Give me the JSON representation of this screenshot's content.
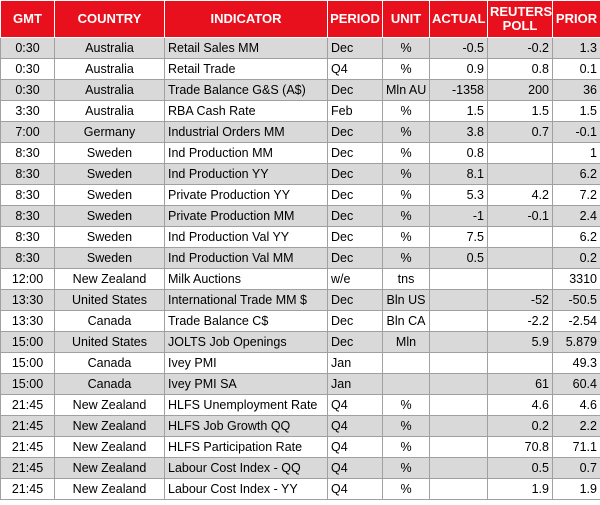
{
  "header": {
    "gmt": "GMT",
    "country": "COUNTRY",
    "indicator": "INDICATOR",
    "period": "PERIOD",
    "unit": "UNIT",
    "actual": "ACTUAL",
    "reuters_line1": "REUTERS",
    "reuters_line2": "POLL",
    "prior": "PRIOR"
  },
  "rows": [
    {
      "gmt": "0:30",
      "country": "Australia",
      "indicator": "Retail Sales MM",
      "period": "Dec",
      "unit": "%",
      "actual": "-0.5",
      "poll": "-0.2",
      "prior": "1.3"
    },
    {
      "gmt": "0:30",
      "country": "Australia",
      "indicator": "Retail Trade",
      "period": "Q4",
      "unit": "%",
      "actual": "0.9",
      "poll": "0.8",
      "prior": "0.1"
    },
    {
      "gmt": "0:30",
      "country": "Australia",
      "indicator": "Trade Balance G&S (A$)",
      "period": "Dec",
      "unit": "Mln AU",
      "actual": "-1358",
      "poll": "200",
      "prior": "36"
    },
    {
      "gmt": "3:30",
      "country": "Australia",
      "indicator": "RBA Cash Rate",
      "period": "Feb",
      "unit": "%",
      "actual": "1.5",
      "poll": "1.5",
      "prior": "1.5"
    },
    {
      "gmt": "7:00",
      "country": "Germany",
      "indicator": "Industrial Orders MM",
      "period": "Dec",
      "unit": "%",
      "actual": "3.8",
      "poll": "0.7",
      "prior": "-0.1"
    },
    {
      "gmt": "8:30",
      "country": "Sweden",
      "indicator": "Ind Production MM",
      "period": "Dec",
      "unit": "%",
      "actual": "0.8",
      "poll": "",
      "prior": "1"
    },
    {
      "gmt": "8:30",
      "country": "Sweden",
      "indicator": "Ind Production YY",
      "period": "Dec",
      "unit": "%",
      "actual": "8.1",
      "poll": "",
      "prior": "6.2"
    },
    {
      "gmt": "8:30",
      "country": "Sweden",
      "indicator": "Private Production YY",
      "period": "Dec",
      "unit": "%",
      "actual": "5.3",
      "poll": "4.2",
      "prior": "7.2"
    },
    {
      "gmt": "8:30",
      "country": "Sweden",
      "indicator": "Private Production MM",
      "period": "Dec",
      "unit": "%",
      "actual": "-1",
      "poll": "-0.1",
      "prior": "2.4"
    },
    {
      "gmt": "8:30",
      "country": "Sweden",
      "indicator": "Ind Production Val YY",
      "period": "Dec",
      "unit": "%",
      "actual": "7.5",
      "poll": "",
      "prior": "6.2"
    },
    {
      "gmt": "8:30",
      "country": "Sweden",
      "indicator": "Ind Production Val MM",
      "period": "Dec",
      "unit": "%",
      "actual": "0.5",
      "poll": "",
      "prior": "0.2"
    },
    {
      "gmt": "12:00",
      "country": "New Zealand",
      "indicator": "Milk Auctions",
      "period": "w/e",
      "unit": "tns",
      "actual": "",
      "poll": "",
      "prior": "3310"
    },
    {
      "gmt": "13:30",
      "country": "United States",
      "indicator": "International Trade MM $",
      "period": "Dec",
      "unit": "Bln US",
      "actual": "",
      "poll": "-52",
      "prior": "-50.5"
    },
    {
      "gmt": "13:30",
      "country": "Canada",
      "indicator": "Trade Balance C$",
      "period": "Dec",
      "unit": "Bln CA",
      "actual": "",
      "poll": "-2.2",
      "prior": "-2.54"
    },
    {
      "gmt": "15:00",
      "country": "United States",
      "indicator": "JOLTS Job Openings",
      "period": "Dec",
      "unit": "Mln",
      "actual": "",
      "poll": "5.9",
      "prior": "5.879"
    },
    {
      "gmt": "15:00",
      "country": "Canada",
      "indicator": "Ivey PMI",
      "period": "Jan",
      "unit": "",
      "actual": "",
      "poll": "",
      "prior": "49.3"
    },
    {
      "gmt": "15:00",
      "country": "Canada",
      "indicator": "Ivey PMI SA",
      "period": "Jan",
      "unit": "",
      "actual": "",
      "poll": "61",
      "prior": "60.4"
    },
    {
      "gmt": "21:45",
      "country": "New Zealand",
      "indicator": "HLFS Unemployment Rate",
      "period": "Q4",
      "unit": "%",
      "actual": "",
      "poll": "4.6",
      "prior": "4.6"
    },
    {
      "gmt": "21:45",
      "country": "New Zealand",
      "indicator": "HLFS Job Growth QQ",
      "period": "Q4",
      "unit": "%",
      "actual": "",
      "poll": "0.2",
      "prior": "2.2"
    },
    {
      "gmt": "21:45",
      "country": "New Zealand",
      "indicator": "HLFS Participation Rate",
      "period": "Q4",
      "unit": "%",
      "actual": "",
      "poll": "70.8",
      "prior": "71.1"
    },
    {
      "gmt": "21:45",
      "country": "New Zealand",
      "indicator": "Labour Cost Index - QQ",
      "period": "Q4",
      "unit": "%",
      "actual": "",
      "poll": "0.5",
      "prior": "0.7"
    },
    {
      "gmt": "21:45",
      "country": "New Zealand",
      "indicator": "Labour Cost Index - YY",
      "period": "Q4",
      "unit": "%",
      "actual": "",
      "poll": "1.9",
      "prior": "1.9"
    }
  ],
  "colors": {
    "header_bg": "#e8101d",
    "header_text": "#ffffff",
    "row_shaded": "#d9d9d9",
    "row_plain": "#ffffff",
    "grid": "#a0a0a0"
  }
}
